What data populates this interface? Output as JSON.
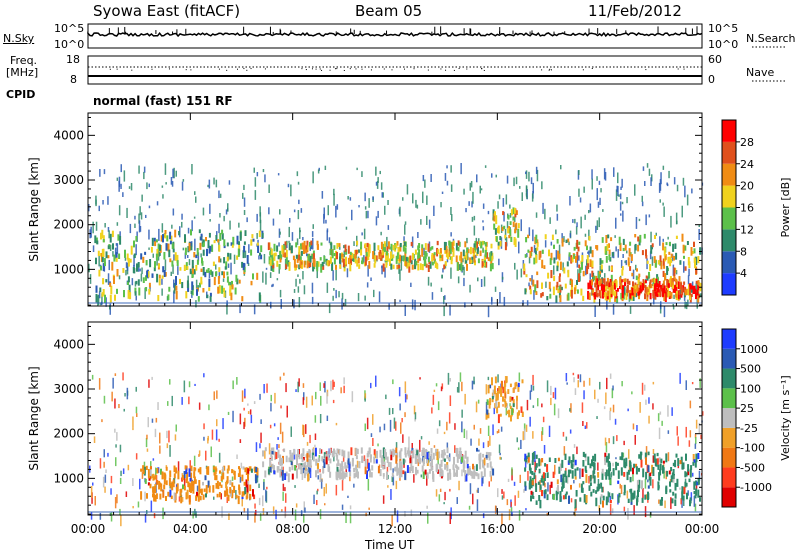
{
  "header": {
    "station": "Syowa East (fitACF)",
    "beam": "Beam 05",
    "date": "11/Feb/2012"
  },
  "panels": {
    "sky": {
      "left_label": "N.Sky",
      "right_label": "N.Search",
      "y_ticks_left": [
        "10^5",
        "10^0"
      ],
      "y_ticks_right": [
        "10^5",
        "10^0"
      ]
    },
    "freq": {
      "left_label_1": "Freq.",
      "left_label_2": "[MHz]",
      "y_ticks_left": [
        "18",
        "8"
      ],
      "right_label": "Nave",
      "y_ticks_right": [
        "60",
        "0"
      ]
    },
    "cpid": {
      "label": "CPID",
      "mode": "normal (fast) 151 RF"
    }
  },
  "chart_data": [
    {
      "type": "heatmap",
      "quantity": "power",
      "ylabel": "Slant Range [km]",
      "ylim": [
        180,
        4500
      ],
      "y_ticks": [
        1000,
        2000,
        3000,
        4000
      ],
      "xlim_hours": [
        0,
        24
      ],
      "colorbar": {
        "label": "Power [dB]",
        "ticks": [
          "4",
          "8",
          "12",
          "16",
          "20",
          "24",
          "28"
        ],
        "colors": [
          "#1e3cff",
          "#2a5ab4",
          "#2e8a6a",
          "#5cc04a",
          "#f0d21e",
          "#f08c14",
          "#e0501c",
          "#ff0000"
        ]
      },
      "bands": [
        {
          "t0": 0.2,
          "t1": 6.8,
          "r0": 400,
          "r1": 1900,
          "level": 3
        },
        {
          "t0": 7.0,
          "t1": 15.8,
          "r0": 1100,
          "r1": 1650,
          "level": 4
        },
        {
          "t0": 15.8,
          "t1": 16.8,
          "r0": 1600,
          "r1": 2400,
          "level": 4
        },
        {
          "t0": 17.0,
          "t1": 23.9,
          "r0": 400,
          "r1": 1800,
          "level": 4
        },
        {
          "t0": 19.5,
          "t1": 23.9,
          "r0": 450,
          "r1": 800,
          "level": 6
        }
      ]
    },
    {
      "type": "heatmap",
      "quantity": "velocity",
      "ylabel": "Slant Range [km]",
      "ylim": [
        180,
        4500
      ],
      "y_ticks": [
        1000,
        2000,
        3000,
        4000
      ],
      "xlim_hours": [
        0,
        24
      ],
      "colorbar": {
        "label": "Velocity [m s⁻¹]",
        "ticks": [
          "1000",
          "500",
          "100",
          "25",
          "-25",
          "-100",
          "-500",
          "-1000"
        ],
        "colors": [
          "#1e3cff",
          "#2a5ab4",
          "#2e8a6a",
          "#5cc04a",
          "#bebebe",
          "#f0a028",
          "#f07814",
          "#ff3c1e",
          "#e00000"
        ]
      },
      "bands": [
        {
          "t0": 2.0,
          "t1": 6.6,
          "r0": 600,
          "r1": 1300,
          "color": "#f08c14"
        },
        {
          "t0": 6.8,
          "t1": 15.8,
          "r0": 1100,
          "r1": 1700,
          "color": "#bebebe"
        },
        {
          "t0": 17.0,
          "t1": 23.9,
          "r0": 500,
          "r1": 1600,
          "color": "#2e8a6a"
        },
        {
          "t0": 15.5,
          "t1": 17.0,
          "r0": 2400,
          "r1": 3300,
          "color": "#f0a028"
        }
      ]
    }
  ],
  "x_axis": {
    "ticks": [
      "00:00",
      "04:00",
      "08:00",
      "12:00",
      "16:00",
      "20:00",
      "00:00"
    ],
    "label": "Time UT"
  }
}
